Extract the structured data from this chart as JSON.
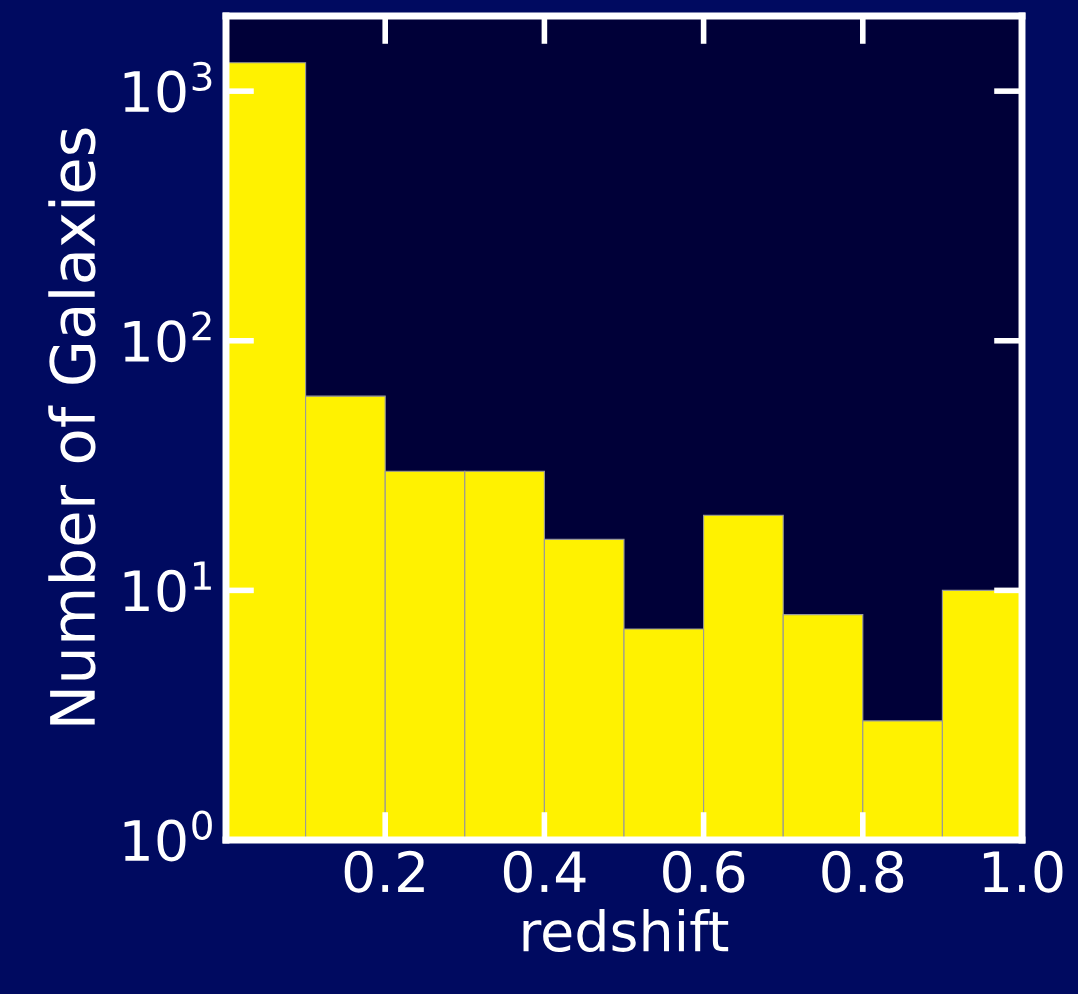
{
  "chart_data": {
    "type": "histogram",
    "xlabel": "redshift",
    "ylabel": "Number of Galaxies",
    "bins": [
      0,
      0.1,
      0.2,
      0.3,
      0.4,
      0.5,
      0.6,
      0.7,
      0.8,
      0.9,
      1.0
    ],
    "values": [
      1300,
      60,
      30,
      30,
      16,
      7,
      20,
      8,
      3,
      10
    ],
    "color": "#fff200",
    "log": "y",
    "xlim": [
      0,
      1.0
    ],
    "ylim": [
      1,
      2000
    ],
    "xticks": [
      0.2,
      0.4,
      0.6,
      0.8,
      {
        "value": 1.0,
        "label": "1.0"
      }
    ],
    "yticks": [
      {
        "value": 1,
        "label": "10$^{0}$"
      },
      {
        "value": 10,
        "label": "10$^{1}$"
      },
      {
        "value": 100,
        "label": "10$^{2}$"
      },
      {
        "value": 1000,
        "label": "10$^{3}$"
      }
    ],
    "grid": false
  }
}
